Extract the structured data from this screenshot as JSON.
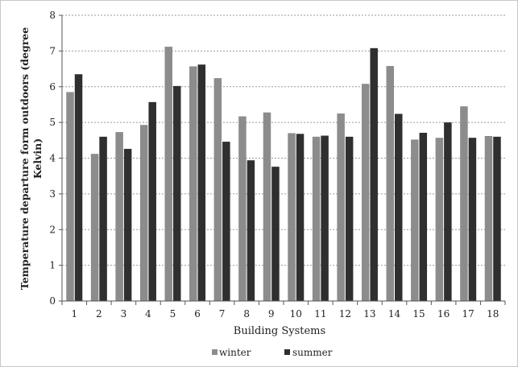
{
  "chart_data": {
    "type": "bar",
    "xlabel": "Building Systems",
    "ylabel_lines": [
      "Temperature departure form outdoors (degree",
      "Kelvin)"
    ],
    "categories": [
      "1",
      "2",
      "3",
      "4",
      "5",
      "6",
      "7",
      "8",
      "9",
      "10",
      "11",
      "12",
      "13",
      "14",
      "15",
      "16",
      "17",
      "18"
    ],
    "series": [
      {
        "name": "winter",
        "color": "#8c8c8c",
        "values": [
          5.85,
          4.12,
          4.73,
          4.93,
          7.12,
          6.57,
          6.24,
          5.17,
          5.28,
          4.7,
          4.6,
          5.25,
          6.08,
          6.58,
          4.52,
          4.57,
          5.45,
          4.62
        ]
      },
      {
        "name": "summer",
        "color": "#2f2f2f",
        "values": [
          6.35,
          4.6,
          4.26,
          5.57,
          6.02,
          6.62,
          4.46,
          3.94,
          3.76,
          4.68,
          4.63,
          4.6,
          7.08,
          5.24,
          4.71,
          5.0,
          4.57,
          4.6
        ]
      }
    ],
    "ylim": [
      0,
      8
    ],
    "yticks": [
      "0",
      "1",
      "2",
      "3",
      "4",
      "5",
      "6",
      "7",
      "8"
    ],
    "grid": true,
    "legend_position": "bottom"
  }
}
